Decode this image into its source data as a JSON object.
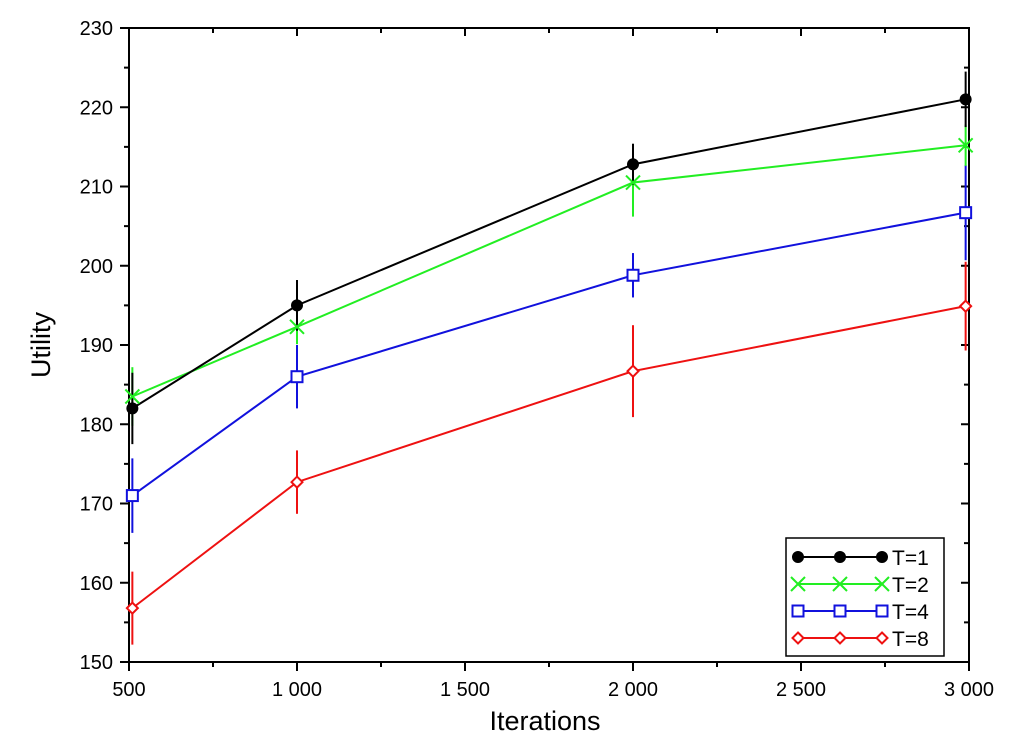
{
  "chart_data": {
    "type": "line",
    "xlabel": "Iterations",
    "ylabel": "Utility",
    "xlim": [
      500,
      3000
    ],
    "ylim": [
      150,
      230
    ],
    "x_ticks": [
      500,
      1000,
      1500,
      2000,
      2500,
      3000
    ],
    "x_tick_labels": [
      "500",
      "1 000",
      "1 500",
      "2 000",
      "2 500",
      "3 000"
    ],
    "y_ticks": [
      150,
      160,
      170,
      180,
      190,
      200,
      210,
      220,
      230
    ],
    "y_tick_labels": [
      "150",
      "160",
      "170",
      "180",
      "190",
      "200",
      "210",
      "220",
      "230"
    ],
    "grid": false,
    "legend_position": "bottom-right",
    "x": [
      510,
      1000,
      2000,
      2990
    ],
    "series": [
      {
        "name": "T=1",
        "color": "#000000",
        "marker": "filled-circle",
        "values": [
          182.0,
          195.0,
          212.8,
          221.0
        ],
        "error": [
          4.5,
          3.2,
          2.6,
          3.5
        ]
      },
      {
        "name": "T=2",
        "color": "#22ee22",
        "marker": "x-cross",
        "values": [
          183.5,
          192.3,
          210.5,
          215.2
        ],
        "error": [
          3.7,
          2.2,
          4.3,
          2.6
        ]
      },
      {
        "name": "T=4",
        "color": "#1111dd",
        "marker": "open-square",
        "values": [
          171.0,
          186.0,
          198.8,
          206.7
        ],
        "error": [
          4.7,
          4.0,
          2.8,
          6.0
        ]
      },
      {
        "name": "T=8",
        "color": "#ee1111",
        "marker": "open-diamond",
        "values": [
          156.8,
          172.7,
          186.7,
          194.9
        ],
        "error": [
          4.6,
          4.0,
          5.8,
          5.6
        ]
      }
    ]
  }
}
